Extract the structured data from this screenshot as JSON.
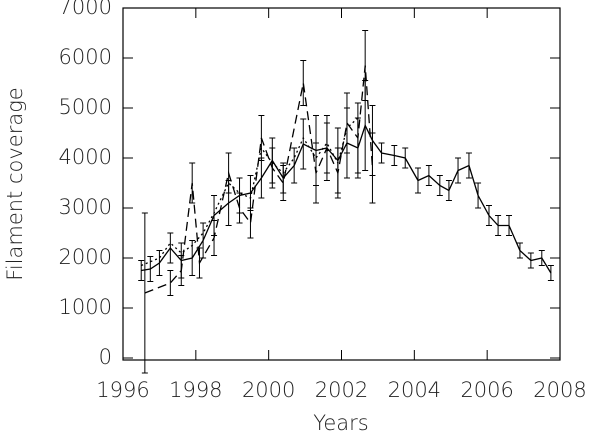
{
  "chart_data": {
    "type": "line",
    "xlabel": "Years",
    "ylabel": "Filament coverage",
    "xlim": [
      1996,
      2008
    ],
    "xticks": [
      1996,
      1998,
      2000,
      2002,
      2004,
      2006,
      2008
    ],
    "ylim": [
      0,
      7000
    ],
    "yticks": [
      0,
      1000,
      2000,
      3000,
      4000,
      5000,
      6000,
      7000
    ],
    "series": [
      {
        "color": "#000000",
        "dash": "solid",
        "x": [
          1996.5,
          1996.75,
          1997.0,
          1997.3,
          1997.6,
          1997.9,
          1998.2,
          1998.5,
          1998.9,
          1999.2,
          1999.5,
          1999.8,
          2000.1,
          2000.4,
          2000.7,
          2000.95,
          2001.3,
          2001.6,
          2001.9,
          2002.15,
          2002.45,
          2002.65,
          2002.85,
          2003.1,
          2003.45,
          2003.75,
          2004.1,
          2004.4,
          2004.7,
          2004.95,
          2005.2,
          2005.5,
          2005.75,
          2006.05,
          2006.3,
          2006.6,
          2006.9,
          2007.2,
          2007.5,
          2007.75
        ],
        "values": [
          1750,
          1780,
          1900,
          2200,
          1950,
          2000,
          2350,
          2850,
          3100,
          3250,
          3300,
          3600,
          3950,
          3600,
          3850,
          4280,
          4150,
          4200,
          3950,
          4300,
          4200,
          4650,
          4350,
          4100,
          4050,
          4000,
          3550,
          3650,
          3450,
          3350,
          3750,
          3850,
          3250,
          2850,
          2650,
          2650,
          2150,
          1950,
          2000,
          1700
        ],
        "errors": [
          200,
          250,
          250,
          300,
          350,
          350,
          350,
          400,
          450,
          350,
          350,
          400,
          450,
          300,
          350,
          500,
          700,
          650,
          650,
          700,
          600,
          900,
          700,
          200,
          200,
          200,
          250,
          200,
          200,
          200,
          250,
          250,
          250,
          200,
          200,
          200,
          150,
          150,
          150,
          150
        ]
      },
      {
        "color": "#000000",
        "dash": "dashed",
        "x": [
          1996.6,
          1997.3,
          1997.6,
          1997.9,
          1998.1,
          1998.5,
          1998.9,
          1999.2,
          1999.5,
          1999.8,
          2000.1,
          2000.4,
          2000.95,
          2001.3,
          2001.6,
          2001.9,
          2002.15,
          2002.45,
          2002.65,
          2002.85
        ],
        "values": [
          1300,
          1500,
          1750,
          3500,
          1900,
          2400,
          3700,
          3000,
          2700,
          4400,
          3800,
          3500,
          5500,
          3700,
          4200,
          3700,
          4700,
          4400,
          5850,
          3800
        ],
        "errors": [
          1600,
          250,
          300,
          400,
          300,
          350,
          400,
          300,
          300,
          450,
          400,
          350,
          450,
          600,
          500,
          500,
          600,
          700,
          700,
          700
        ]
      },
      {
        "color": "#000000",
        "dash": "dotted",
        "x": [
          1996.5,
          1997.0,
          1997.3,
          1997.6,
          1997.9,
          1998.2,
          1998.5,
          1998.9,
          1999.2,
          1999.5,
          1999.8,
          2000.1,
          2000.4,
          2000.7,
          2000.95,
          2001.3,
          2001.6,
          2001.9,
          2002.15,
          2002.45
        ],
        "values": [
          1850,
          2000,
          2300,
          2100,
          2250,
          2500,
          2900,
          3500,
          3300,
          3200,
          4200,
          3900,
          3700,
          4000,
          4400,
          4000,
          4300,
          3900,
          4600,
          4800
        ]
      }
    ]
  }
}
